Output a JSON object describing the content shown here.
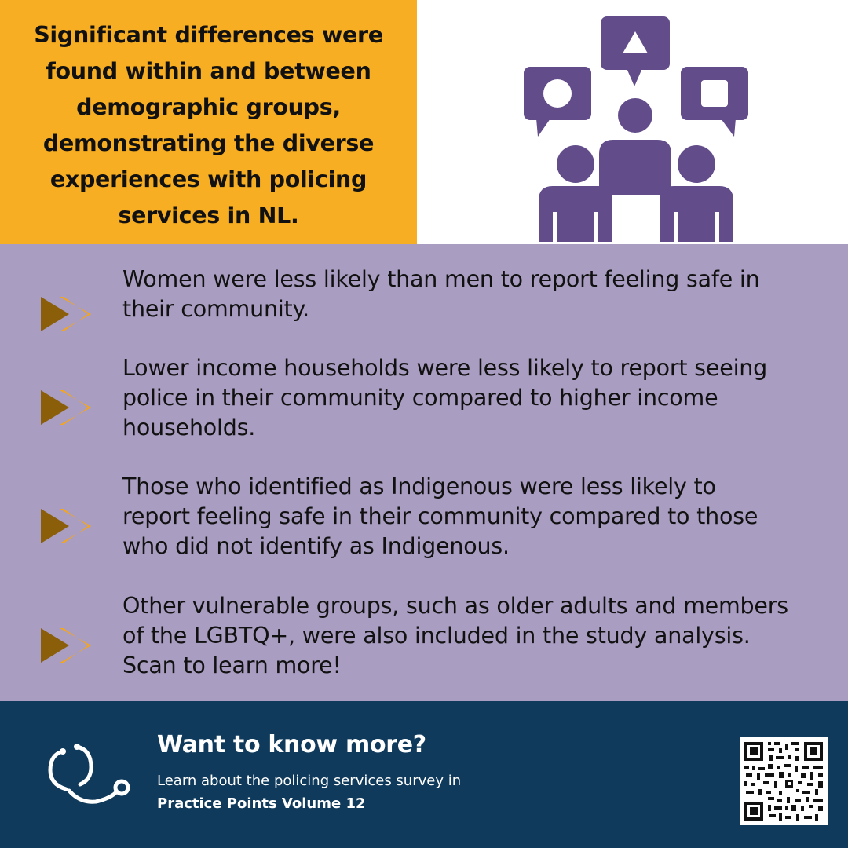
{
  "headline": "Significant differences were found within and between demographic groups, demonstrating the diverse experiences with policing services in NL.",
  "findings": [
    {
      "text": "Women were less likely than men to report feeling safe in their community."
    },
    {
      "text": "Lower income households were less likely to report seeing police in their community compared to higher income households."
    },
    {
      "text": "Those who identified as Indigenous were less likely to report feeling safe in their community compared to those who did not identify as Indigenous."
    },
    {
      "text": "Other vulnerable groups, such as older adults and members of the LGBTQ+, were also included in the study analysis. Scan to learn more!"
    }
  ],
  "footer": {
    "title": "Want to know more?",
    "line1": "Learn about the policing services survey in",
    "line2": "Practice Points Volume 12"
  },
  "icons": {
    "header": "people-discussion-icon",
    "bullet": "double-chevron-right-icon",
    "footer": "stethoscope-icon",
    "qr": "qr-code"
  },
  "colors": {
    "orange": "#f8ae23",
    "purple_icon": "#624c8a",
    "lavender": "#a99dc1",
    "navy": "#0f3a5b",
    "chevron_dark": "#8b5e0a",
    "chevron_light": "#f2a520"
  }
}
